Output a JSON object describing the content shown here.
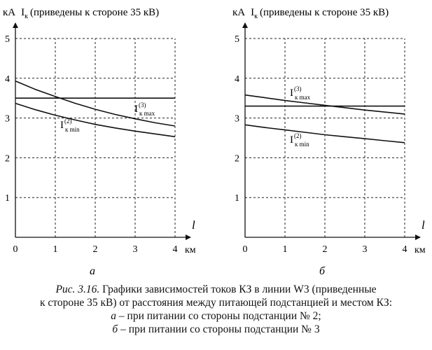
{
  "chart_data": [
    {
      "type": "line",
      "panel_label": "а",
      "y_unit": "кА",
      "y_label_symbol": "I",
      "y_label_subscript": "к",
      "y_label_text": "(приведены к стороне 35 кВ)",
      "x_label": "l",
      "x_unit": "км",
      "xlim": [
        0,
        4
      ],
      "ylim": [
        0,
        5
      ],
      "x_ticks": [
        "0",
        "1",
        "2",
        "3",
        "4"
      ],
      "y_ticks": [
        "1",
        "2",
        "3",
        "4",
        "5"
      ],
      "grid": true,
      "series": [
        {
          "label_main": "I",
          "label_sup": "(3)",
          "label_sub": "к max",
          "x": [
            0,
            4
          ],
          "y": [
            3.5,
            3.5
          ]
        },
        {
          "x": [
            0,
            0.5,
            1,
            1.5,
            2,
            2.5,
            3,
            3.5,
            4
          ],
          "y": [
            3.93,
            3.72,
            3.54,
            3.37,
            3.22,
            3.09,
            2.98,
            2.88,
            2.8
          ]
        },
        {
          "label_main": "I",
          "label_sup": "(2)",
          "label_sub": "к min",
          "x": [
            0,
            0.5,
            1,
            1.5,
            2,
            2.5,
            3,
            3.5,
            4
          ],
          "y": [
            3.37,
            3.21,
            3.07,
            2.95,
            2.84,
            2.75,
            2.67,
            2.6,
            2.53
          ]
        }
      ]
    },
    {
      "type": "line",
      "panel_label": "б",
      "y_unit": "кА",
      "y_label_symbol": "I",
      "y_label_subscript": "к",
      "y_label_text": "(приведены к стороне 35 кВ)",
      "x_label": "l",
      "x_unit": "км",
      "xlim": [
        0,
        4
      ],
      "ylim": [
        0,
        5
      ],
      "x_ticks": [
        "0",
        "1",
        "2",
        "3",
        "4"
      ],
      "y_ticks": [
        "1",
        "2",
        "3",
        "4",
        "5"
      ],
      "grid": true,
      "series": [
        {
          "label_main": "I",
          "label_sup": "(3)",
          "label_sub": "к max",
          "x": [
            0,
            4
          ],
          "y": [
            3.3,
            3.3
          ]
        },
        {
          "x": [
            0,
            0.5,
            1,
            1.5,
            2,
            2.5,
            3,
            3.5,
            4
          ],
          "y": [
            3.58,
            3.51,
            3.44,
            3.38,
            3.32,
            3.26,
            3.2,
            3.15,
            3.1
          ]
        },
        {
          "label_main": "I",
          "label_sup": "(2)",
          "label_sub": "к min",
          "x": [
            0,
            0.5,
            1,
            1.5,
            2,
            2.5,
            3,
            3.5,
            4
          ],
          "y": [
            2.83,
            2.76,
            2.7,
            2.64,
            2.58,
            2.53,
            2.48,
            2.43,
            2.38
          ]
        }
      ]
    }
  ],
  "caption": {
    "fig_label": "Рис. 3.16.",
    "line1": "Графики зависимостей токов КЗ в линии W3 (приведенные",
    "line2": "к стороне 35 кВ) от расстояния между питающей подстанцией и местом КЗ:",
    "item_a_letter": "а",
    "item_a_text": " – при питании со стороны подстанции № 2;",
    "item_b_letter": "б",
    "item_b_text": " – при питании со стороны подстанции № 3"
  }
}
